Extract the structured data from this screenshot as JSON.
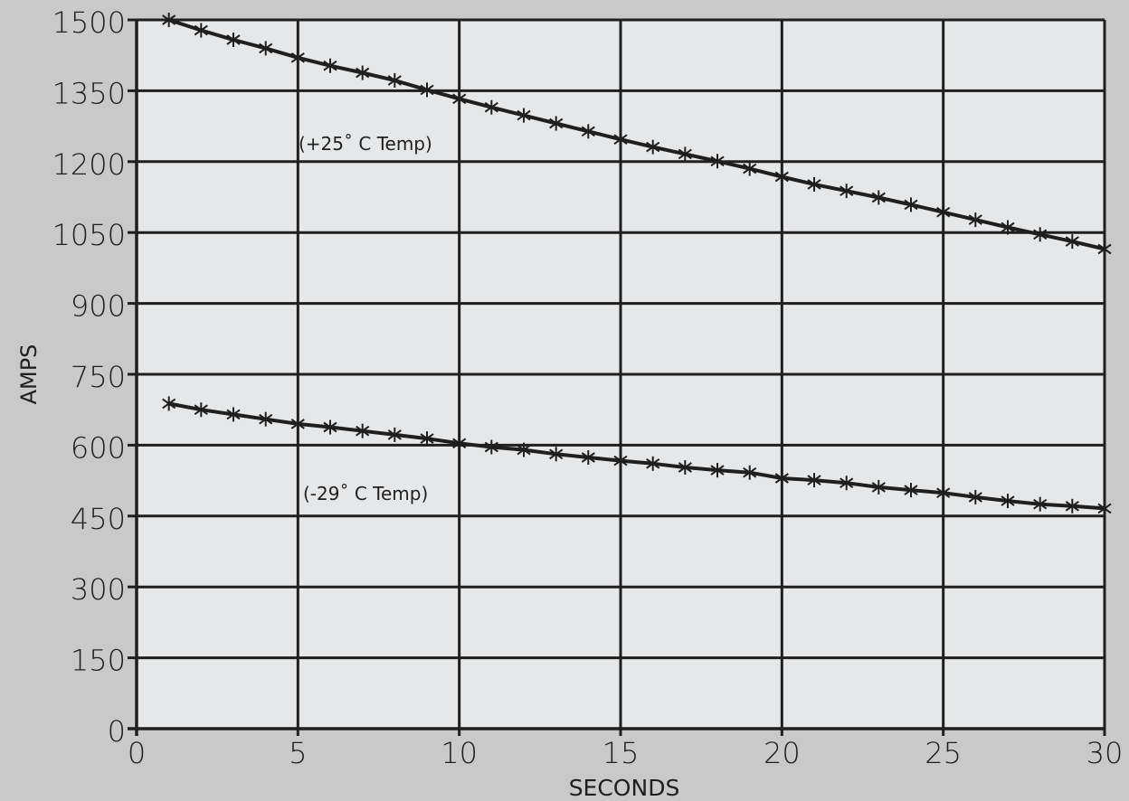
{
  "colors": {
    "page_background": "#c9c9c9",
    "plot_background": "#e6e7e8",
    "ink": "#1f1f1f"
  },
  "chart_data": {
    "type": "line",
    "title": "",
    "xlabel": "SECONDS",
    "ylabel": "AMPS",
    "xlim": [
      0,
      30
    ],
    "ylim": [
      0,
      1500
    ],
    "x_ticks": [
      0,
      5,
      10,
      15,
      20,
      25,
      30
    ],
    "x_tick_labels": [
      "0",
      "5",
      "10",
      "15",
      "20",
      "25",
      "30"
    ],
    "y_ticks": [
      0,
      150,
      300,
      450,
      600,
      750,
      900,
      1050,
      1200,
      1350,
      1500
    ],
    "y_tick_labels": [
      "0",
      "150",
      "300",
      "450",
      "600",
      "750",
      "900",
      "1050",
      "1200",
      "1350",
      "1500"
    ],
    "grid": true,
    "marker": "star",
    "x": [
      1,
      2,
      3,
      4,
      5,
      6,
      7,
      8,
      9,
      10,
      11,
      12,
      13,
      14,
      15,
      16,
      17,
      18,
      19,
      20,
      21,
      22,
      23,
      24,
      25,
      26,
      27,
      28,
      29,
      30
    ],
    "series": [
      {
        "label": "(+25˚ C Temp)",
        "values": [
          1500,
          1478,
          1458,
          1440,
          1420,
          1403,
          1388,
          1372,
          1352,
          1333,
          1315,
          1298,
          1281,
          1264,
          1247,
          1231,
          1216,
          1201,
          1185,
          1168,
          1152,
          1138,
          1124,
          1109,
          1093,
          1077,
          1061,
          1046,
          1031,
          1015
        ]
      },
      {
        "label": "(-29˚ C Temp)",
        "values": [
          688,
          675,
          665,
          655,
          645,
          638,
          630,
          622,
          614,
          604,
          596,
          590,
          581,
          574,
          567,
          561,
          553,
          547,
          542,
          530,
          526,
          520,
          511,
          505,
          499,
          490,
          482,
          475,
          471,
          466
        ]
      }
    ]
  }
}
